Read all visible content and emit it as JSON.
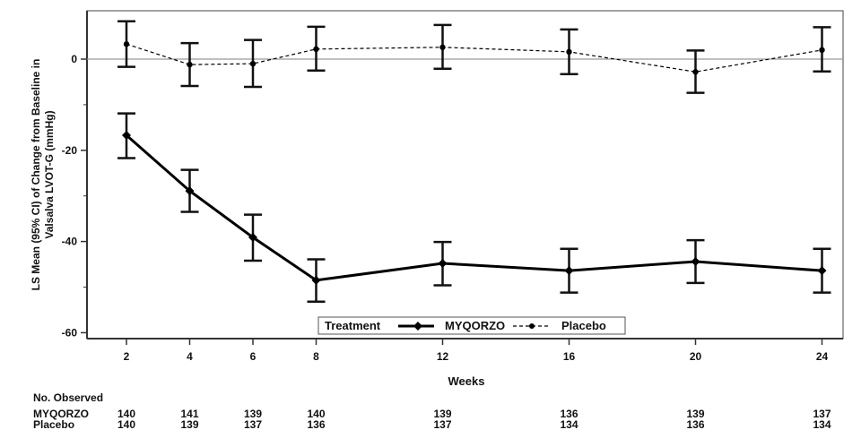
{
  "chart_data": {
    "type": "line",
    "title": "",
    "xlabel": "Weeks",
    "ylabel": "LS Mean (95% CI) of Change from Baseline in Valsalva LVOT-G (mmHg)",
    "ylabel_lines": [
      "LS Mean (95% CI) of Change from Baseline in",
      "Valsalva LVOT-G (mmHg)"
    ],
    "ylim": [
      -62,
      11
    ],
    "yticks": [
      0,
      -20,
      -40,
      -60
    ],
    "yticks_minor": [
      -10,
      -30,
      -50
    ],
    "x": [
      2,
      4,
      6,
      8,
      12,
      16,
      20,
      24
    ],
    "xtick_labels": [
      "2",
      "4",
      "6",
      "8",
      "12",
      "16",
      "20",
      "24"
    ],
    "reference_line": 0,
    "legend": {
      "title": "Treatment",
      "placement": "bottom-center-inside"
    },
    "series": [
      {
        "name": "MYQORZO",
        "style": "solid",
        "color": "#000000",
        "values": [
          -16.7,
          -28.9,
          -39.1,
          -48.5,
          -44.8,
          -46.4,
          -44.4,
          -46.4
        ],
        "ci_low": [
          -21.7,
          -33.5,
          -44.2,
          -53.2,
          -49.6,
          -51.2,
          -49.1,
          -51.2
        ],
        "ci_high": [
          -11.9,
          -24.3,
          -34.1,
          -43.9,
          -40.1,
          -41.6,
          -39.7,
          -41.6
        ]
      },
      {
        "name": "Placebo",
        "style": "dashed",
        "color": "#000000",
        "values": [
          3.3,
          -1.2,
          -1.0,
          2.2,
          2.6,
          1.6,
          -2.8,
          2.0
        ],
        "ci_low": [
          -1.7,
          -5.9,
          -6.1,
          -2.5,
          -2.1,
          -3.3,
          -7.4,
          -2.7
        ],
        "ci_high": [
          8.3,
          3.5,
          4.2,
          7.1,
          7.5,
          6.5,
          1.9,
          7.0
        ]
      }
    ],
    "observed": {
      "label": "No. Observed",
      "rows": [
        {
          "name": "MYQORZO",
          "counts": [
            "140",
            "141",
            "139",
            "140",
            "139",
            "136",
            "139",
            "137"
          ]
        },
        {
          "name": "Placebo",
          "counts": [
            "140",
            "139",
            "137",
            "136",
            "137",
            "134",
            "136",
            "134"
          ]
        }
      ]
    }
  }
}
